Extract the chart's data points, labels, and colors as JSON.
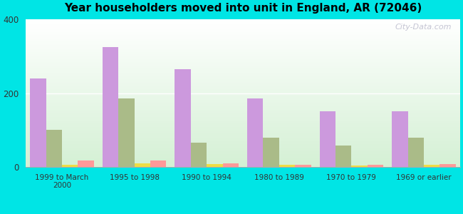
{
  "title": "Year householders moved into unit in England, AR (72046)",
  "categories": [
    "1999 to March\n2000",
    "1995 to 1998",
    "1990 to 1994",
    "1980 to 1989",
    "1970 to 1979",
    "1969 or earlier"
  ],
  "series": {
    "White Non-Hispanic": [
      240,
      325,
      265,
      185,
      150,
      150
    ],
    "Black": [
      100,
      185,
      65,
      80,
      58,
      80
    ],
    "Two or More Races": [
      5,
      10,
      8,
      5,
      4,
      5
    ],
    "Hispanic or Latino": [
      18,
      18,
      10,
      5,
      5,
      7
    ]
  },
  "colors": {
    "White Non-Hispanic": "#cc99dd",
    "Black": "#aabb88",
    "Two or More Races": "#eedd44",
    "Hispanic or Latino": "#ff9999"
  },
  "legend_marker_colors": {
    "White Non-Hispanic": "#dd99ee",
    "Black": "#bbcc88",
    "Two or More Races": "#eedd55",
    "Hispanic or Latino": "#ffaaaa"
  },
  "ylim": [
    0,
    400
  ],
  "yticks": [
    0,
    200,
    400
  ],
  "bg_color": "#00e5e5",
  "watermark": "City-Data.com",
  "bar_width": 0.22
}
